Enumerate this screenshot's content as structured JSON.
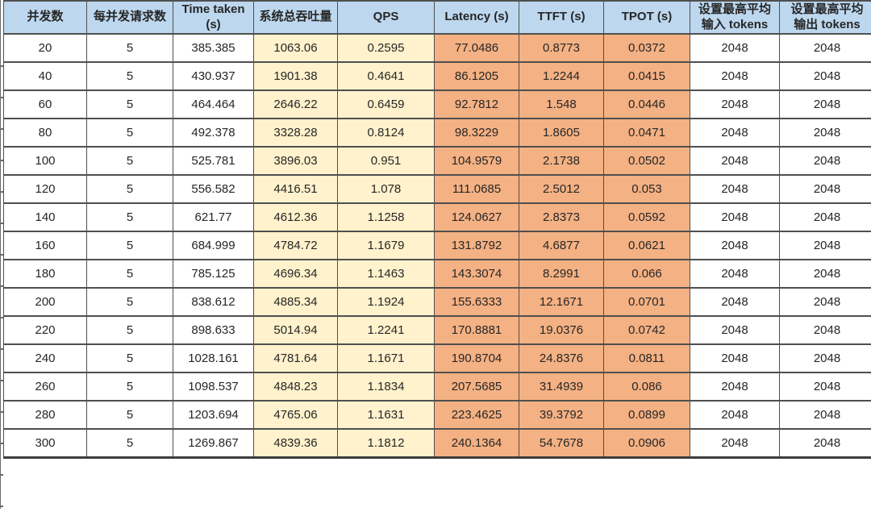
{
  "colors": {
    "header_bg": "#BDD7EE",
    "yellow_bg": "#FFF2CC",
    "orange_bg": "#F4B183",
    "border": "#4f4f4f",
    "text": "#262626"
  },
  "table": {
    "columns": [
      {
        "id": "concurrency",
        "label": "并发数",
        "group": "plain"
      },
      {
        "id": "requests-per-concurrency",
        "label": "每并发请求数",
        "group": "plain"
      },
      {
        "id": "time-taken",
        "label": "Time taken\n(s)",
        "group": "plain"
      },
      {
        "id": "system-throughput",
        "label": "系统总吞吐量",
        "group": "yellow"
      },
      {
        "id": "qps",
        "label": "QPS",
        "group": "yellow"
      },
      {
        "id": "latency",
        "label": "Latency (s)",
        "group": "orange"
      },
      {
        "id": "ttft",
        "label": "TTFT (s)",
        "group": "orange"
      },
      {
        "id": "tpot",
        "label": "TPOT (s)",
        "group": "orange"
      },
      {
        "id": "max-avg-input-tokens",
        "label": "设置最高平均\n输入 tokens",
        "group": "plain"
      },
      {
        "id": "max-avg-output-tokens",
        "label": "设置最高平均\n输出 tokens",
        "group": "plain"
      }
    ],
    "rows": [
      [
        "20",
        "5",
        "385.385",
        "1063.06",
        "0.2595",
        "77.0486",
        "0.8773",
        "0.0372",
        "2048",
        "2048"
      ],
      [
        "40",
        "5",
        "430.937",
        "1901.38",
        "0.4641",
        "86.1205",
        "1.2244",
        "0.0415",
        "2048",
        "2048"
      ],
      [
        "60",
        "5",
        "464.464",
        "2646.22",
        "0.6459",
        "92.7812",
        "1.548",
        "0.0446",
        "2048",
        "2048"
      ],
      [
        "80",
        "5",
        "492.378",
        "3328.28",
        "0.8124",
        "98.3229",
        "1.8605",
        "0.0471",
        "2048",
        "2048"
      ],
      [
        "100",
        "5",
        "525.781",
        "3896.03",
        "0.951",
        "104.9579",
        "2.1738",
        "0.0502",
        "2048",
        "2048"
      ],
      [
        "120",
        "5",
        "556.582",
        "4416.51",
        "1.078",
        "111.0685",
        "2.5012",
        "0.053",
        "2048",
        "2048"
      ],
      [
        "140",
        "5",
        "621.77",
        "4612.36",
        "1.1258",
        "124.0627",
        "2.8373",
        "0.0592",
        "2048",
        "2048"
      ],
      [
        "160",
        "5",
        "684.999",
        "4784.72",
        "1.1679",
        "131.8792",
        "4.6877",
        "0.0621",
        "2048",
        "2048"
      ],
      [
        "180",
        "5",
        "785.125",
        "4696.34",
        "1.1463",
        "143.3074",
        "8.2991",
        "0.066",
        "2048",
        "2048"
      ],
      [
        "200",
        "5",
        "838.612",
        "4885.34",
        "1.1924",
        "155.6333",
        "12.1671",
        "0.0701",
        "2048",
        "2048"
      ],
      [
        "220",
        "5",
        "898.633",
        "5014.94",
        "1.2241",
        "170.8881",
        "19.0376",
        "0.0742",
        "2048",
        "2048"
      ],
      [
        "240",
        "5",
        "1028.161",
        "4781.64",
        "1.1671",
        "190.8704",
        "24.8376",
        "0.0811",
        "2048",
        "2048"
      ],
      [
        "260",
        "5",
        "1098.537",
        "4848.23",
        "1.1834",
        "207.5685",
        "31.4939",
        "0.086",
        "2048",
        "2048"
      ],
      [
        "280",
        "5",
        "1203.694",
        "4765.06",
        "1.1631",
        "223.4625",
        "39.3792",
        "0.0899",
        "2048",
        "2048"
      ],
      [
        "300",
        "5",
        "1269.867",
        "4839.36",
        "1.1812",
        "240.1364",
        "54.7678",
        "0.0906",
        "2048",
        "2048"
      ]
    ]
  }
}
